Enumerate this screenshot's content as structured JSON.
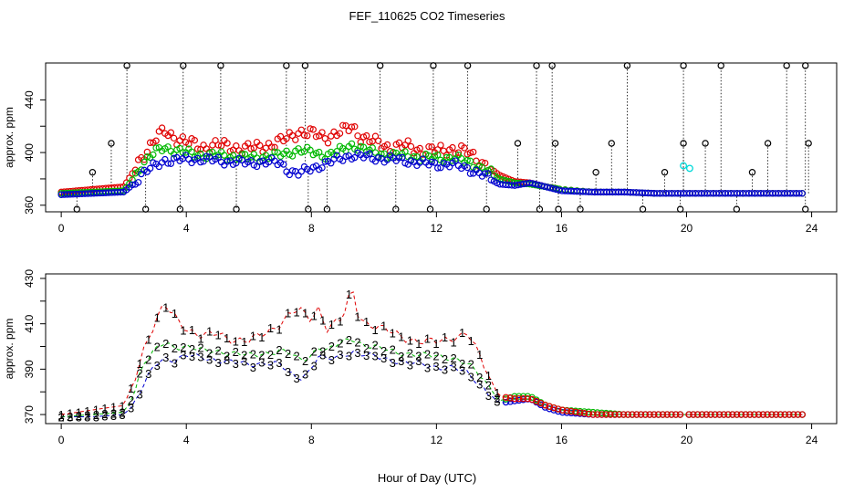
{
  "figure": {
    "title": "FEF_110625  CO2 Timeseries",
    "xlabel": "Hour of Day (UTC)"
  },
  "colors": {
    "series1": "#e00000",
    "series2": "#00b800",
    "series3": "#0000d0",
    "flag": "#00d8d8",
    "outlier": "#000000"
  },
  "chart_data": [
    {
      "type": "scatter",
      "title": "FEF_110625  CO2 Timeseries",
      "ylabel": "approx. ppm",
      "xlim": [
        -0.5,
        24.8
      ],
      "ylim": [
        355,
        468
      ],
      "xticks": [
        0,
        4,
        8,
        12,
        16,
        20,
        24
      ],
      "yticks": [
        360,
        380,
        400,
        420,
        440
      ],
      "ytick_labels": [
        "360",
        "",
        "400",
        "",
        "440"
      ],
      "grid": false,
      "smooth_series": [
        {
          "color": "series1",
          "x": [
            0,
            1,
            2,
            2.3,
            2.6,
            3,
            3.3,
            3.6,
            4,
            4.5,
            5,
            5.5,
            6,
            6.5,
            7,
            7.3,
            7.6,
            8,
            8.5,
            9,
            9.3,
            9.6,
            10,
            10.5,
            11,
            11.5,
            12,
            12.5,
            13,
            13.5,
            14,
            14.5,
            15,
            15.5,
            16,
            17,
            18,
            19,
            20,
            21,
            22,
            23,
            23.7
          ],
          "y": [
            370,
            372,
            374,
            385,
            398,
            410,
            416,
            412,
            408,
            404,
            406,
            404,
            403,
            405,
            408,
            412,
            416,
            414,
            412,
            416,
            420,
            412,
            408,
            404,
            405,
            402,
            401,
            403,
            400,
            392,
            383,
            378,
            377,
            374,
            372,
            370,
            370,
            369,
            369,
            369,
            369,
            369,
            369
          ]
        },
        {
          "color": "series2",
          "x": [
            0,
            1,
            2,
            2.3,
            2.6,
            3,
            3.3,
            3.6,
            4,
            4.5,
            5,
            5.5,
            6,
            6.5,
            7,
            7.3,
            7.6,
            8,
            8.5,
            9,
            9.3,
            9.6,
            10,
            10.5,
            11,
            11.5,
            12,
            12.5,
            13,
            13.5,
            14,
            14.5,
            15,
            15.5,
            16,
            17,
            18,
            19,
            20,
            21,
            22,
            23,
            23.7
          ],
          "y": [
            369,
            370,
            371,
            380,
            392,
            400,
            404,
            402,
            400,
            398,
            398,
            397,
            396,
            397,
            398,
            400,
            402,
            400,
            398,
            402,
            406,
            403,
            400,
            398,
            398,
            396,
            396,
            396,
            393,
            388,
            380,
            377,
            376,
            374,
            372,
            370,
            370,
            369,
            369,
            369,
            369,
            369,
            369
          ]
        },
        {
          "color": "series3",
          "x": [
            0,
            1,
            2,
            2.3,
            2.6,
            3,
            3.3,
            3.6,
            4,
            4.5,
            5,
            5.5,
            6,
            6.5,
            7,
            7.3,
            7.6,
            8,
            8.5,
            9,
            9.3,
            9.6,
            10,
            10.5,
            11,
            11.5,
            12,
            12.5,
            13,
            13.5,
            14,
            14.5,
            15,
            15.5,
            16,
            17,
            18,
            19,
            20,
            21,
            22,
            23,
            23.7
          ],
          "y": [
            368,
            369,
            370,
            376,
            384,
            390,
            394,
            394,
            395,
            395,
            394,
            393,
            392,
            393,
            392,
            386,
            384,
            388,
            392,
            396,
            398,
            397,
            396,
            395,
            394,
            392,
            391,
            391,
            388,
            383,
            376,
            375,
            377,
            374,
            371,
            370,
            370,
            369,
            369,
            369,
            369,
            369,
            369
          ]
        }
      ],
      "cyan_flags": [
        {
          "x": 19.9,
          "y": 390
        },
        {
          "x": 20.1,
          "y": 388
        }
      ],
      "outlier_spikes": [
        {
          "x": 0.5,
          "y": 357
        },
        {
          "x": 1.0,
          "y": 385
        },
        {
          "x": 1.6,
          "y": 407
        },
        {
          "x": 2.1,
          "y": 466
        },
        {
          "x": 2.7,
          "y": 357
        },
        {
          "x": 3.8,
          "y": 357
        },
        {
          "x": 3.9,
          "y": 466
        },
        {
          "x": 5.1,
          "y": 466
        },
        {
          "x": 5.6,
          "y": 357
        },
        {
          "x": 7.2,
          "y": 466
        },
        {
          "x": 7.8,
          "y": 466
        },
        {
          "x": 7.9,
          "y": 357
        },
        {
          "x": 8.5,
          "y": 357
        },
        {
          "x": 10.2,
          "y": 466
        },
        {
          "x": 10.7,
          "y": 357
        },
        {
          "x": 11.8,
          "y": 357
        },
        {
          "x": 11.9,
          "y": 466
        },
        {
          "x": 13.0,
          "y": 466
        },
        {
          "x": 13.6,
          "y": 357
        },
        {
          "x": 14.6,
          "y": 407
        },
        {
          "x": 15.2,
          "y": 466
        },
        {
          "x": 15.3,
          "y": 357
        },
        {
          "x": 15.7,
          "y": 466
        },
        {
          "x": 15.8,
          "y": 407
        },
        {
          "x": 15.9,
          "y": 357
        },
        {
          "x": 16.6,
          "y": 357
        },
        {
          "x": 17.1,
          "y": 385
        },
        {
          "x": 17.6,
          "y": 407
        },
        {
          "x": 18.1,
          "y": 466
        },
        {
          "x": 18.6,
          "y": 357
        },
        {
          "x": 19.3,
          "y": 385
        },
        {
          "x": 19.8,
          "y": 357
        },
        {
          "x": 19.9,
          "y": 407
        },
        {
          "x": 19.9,
          "y": 466
        },
        {
          "x": 20.6,
          "y": 407
        },
        {
          "x": 21.1,
          "y": 466
        },
        {
          "x": 21.6,
          "y": 357
        },
        {
          "x": 22.1,
          "y": 385
        },
        {
          "x": 22.6,
          "y": 407
        },
        {
          "x": 23.2,
          "y": 466
        },
        {
          "x": 23.8,
          "y": 466
        },
        {
          "x": 23.8,
          "y": 357
        },
        {
          "x": 23.9,
          "y": 407
        }
      ]
    },
    {
      "type": "line",
      "ylabel": "approx. ppm",
      "xlim": [
        -0.5,
        24.8
      ],
      "ylim": [
        366,
        432
      ],
      "xticks": [
        0,
        4,
        8,
        12,
        16,
        20,
        24
      ],
      "yticks": [
        370,
        380,
        390,
        400,
        410,
        420,
        430
      ],
      "ytick_labels": [
        "370",
        "",
        "390",
        "",
        "410",
        "",
        "430"
      ],
      "grid": false,
      "series": [
        {
          "marker": "1",
          "color": "series1",
          "x": [
            0,
            1,
            2,
            2.3,
            2.6,
            3,
            3.3,
            3.6,
            4,
            4.5,
            5,
            5.5,
            6,
            6.5,
            7,
            7.3,
            7.6,
            8,
            8.2,
            8.5,
            9,
            9.3,
            9.5,
            9.8,
            10.2,
            10.6,
            11,
            11.5,
            12,
            12.5,
            13,
            13.5,
            14,
            14.5,
            15,
            15.5,
            16,
            17,
            18,
            19,
            20,
            21,
            22,
            23,
            23.7
          ],
          "y": [
            370,
            372,
            374,
            384,
            398,
            410,
            418,
            414,
            408,
            404,
            406,
            403,
            402,
            406,
            410,
            414,
            416,
            412,
            418,
            408,
            412,
            426,
            414,
            410,
            408,
            406,
            404,
            402,
            402,
            404,
            406,
            392,
            378,
            377,
            377,
            374,
            372,
            370,
            370,
            370,
            370,
            370,
            370,
            370,
            370
          ]
        },
        {
          "marker": "2",
          "color": "series2",
          "x": [
            0,
            1,
            2,
            2.3,
            2.6,
            3,
            3.3,
            3.6,
            4,
            4.5,
            5,
            5.5,
            6,
            6.5,
            7,
            7.3,
            7.6,
            8,
            8.2,
            8.5,
            9,
            9.3,
            9.5,
            9.8,
            10.2,
            10.6,
            11,
            11.5,
            12,
            12.5,
            13,
            13.5,
            14,
            14.5,
            15,
            15.5,
            16,
            17,
            18,
            19,
            20,
            21,
            22,
            23,
            23.7
          ],
          "y": [
            369,
            370,
            371,
            378,
            392,
            398,
            402,
            400,
            400,
            398,
            398,
            397,
            396,
            397,
            398,
            397,
            394,
            396,
            400,
            398,
            402,
            404,
            402,
            400,
            399,
            398,
            397,
            396,
            396,
            395,
            392,
            386,
            376,
            378,
            378,
            374,
            372,
            371,
            370,
            370,
            370,
            370,
            370,
            370,
            370
          ]
        },
        {
          "marker": "3",
          "color": "series3",
          "x": [
            0,
            1,
            2,
            2.3,
            2.6,
            3,
            3.3,
            3.6,
            4,
            4.5,
            5,
            5.5,
            6,
            6.5,
            7,
            7.3,
            7.6,
            8,
            8.2,
            8.5,
            9,
            9.3,
            9.5,
            9.8,
            10.2,
            10.6,
            11,
            11.5,
            12,
            12.5,
            13,
            13.5,
            14,
            14.5,
            15,
            15.5,
            16,
            17,
            18,
            19,
            20,
            21,
            22,
            23,
            23.7
          ],
          "y": [
            369,
            369,
            370,
            374,
            382,
            392,
            395,
            394,
            396,
            395,
            394,
            393,
            392,
            393,
            392,
            388,
            386,
            390,
            396,
            394,
            396,
            398,
            397,
            396,
            395,
            394,
            393,
            392,
            391,
            391,
            388,
            382,
            375,
            376,
            377,
            373,
            371,
            370,
            370,
            370,
            370,
            370,
            370,
            370,
            370
          ]
        }
      ]
    }
  ]
}
